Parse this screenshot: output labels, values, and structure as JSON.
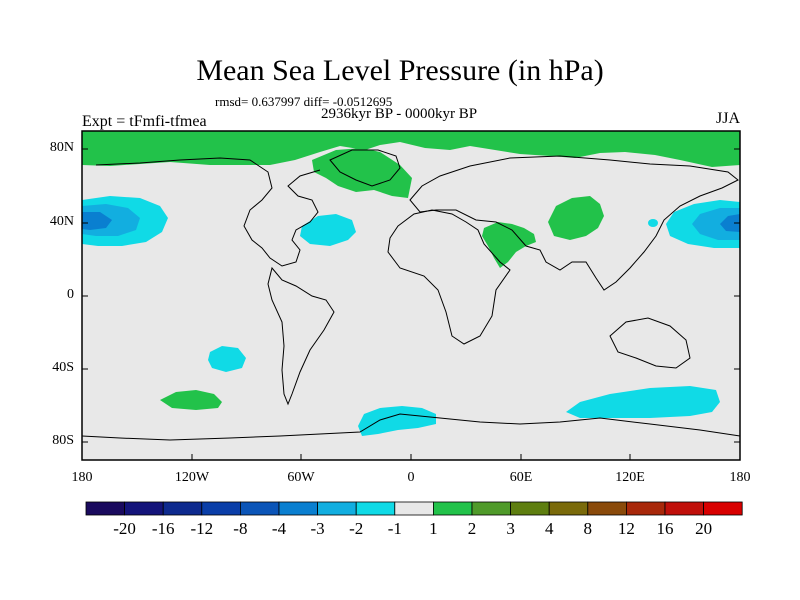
{
  "title": "Mean Sea Level Pressure (in hPa)",
  "stats": "rmsd= 0.637997 diff= -0.0512695",
  "period": "2936kyr BP - 0000kyr BP",
  "experiment": "Expt = tFmfi-tfmea",
  "season": "JJA",
  "lat_ticks": [
    "80N",
    "40N",
    "0",
    "40S",
    "80S"
  ],
  "lon_ticks": [
    "180",
    "120W",
    "60W",
    "0",
    "60E",
    "120E",
    "180"
  ],
  "colorbar": {
    "labels": [
      "-20",
      "-16",
      "-12",
      "-8",
      "-4",
      "-3",
      "-2",
      "-1",
      "1",
      "2",
      "3",
      "4",
      "8",
      "12",
      "16",
      "20"
    ],
    "colors": [
      "#1a0a5e",
      "#14147a",
      "#0e2a8e",
      "#0a3ea8",
      "#0b55b8",
      "#0a7fd0",
      "#12aee0",
      "#10dae6",
      "#e8e8e8",
      "#22c24a",
      "#4f9a2a",
      "#5e7e10",
      "#7a6a0a",
      "#8a4a0a",
      "#a8280a",
      "#c0100a",
      "#d80000"
    ]
  },
  "colors": {
    "land_ocean_bg": "#e8e8e8",
    "positive_1_2": "#22c24a",
    "negative_1_2": "#10dae6",
    "negative_2_3": "#12aee0",
    "negative_3_4": "#0a7fd0"
  }
}
